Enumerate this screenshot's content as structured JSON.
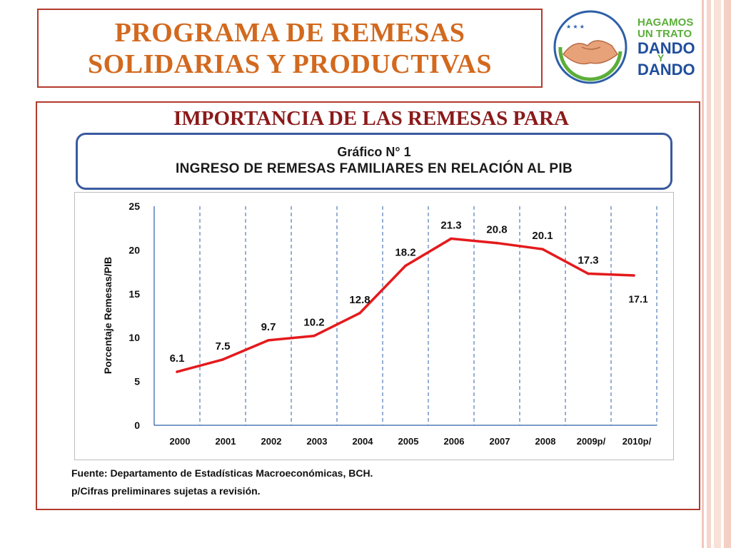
{
  "slide": {
    "title_line1": "PROGRAMA DE REMESAS",
    "title_line2": "SOLIDARIAS Y PRODUCTIVAS",
    "subtitle": "IMPORTANCIA DE LAS REMESAS PARA"
  },
  "logo": {
    "line1": "HAGAMOS",
    "line2": "UN TRATO",
    "line3": "DANDO",
    "connector": "Y",
    "line4": "DANDO"
  },
  "colors": {
    "title": "#d2691e",
    "subtitle": "#8b1a1a",
    "frame": "#b33a2e",
    "series": "#e41a1c",
    "header_border": "#3a5aa0"
  },
  "chart_data": {
    "type": "line",
    "title": "Gráfico N° 1",
    "subtitle": "INGRESO DE REMESAS FAMILIARES EN RELACIÓN AL PIB",
    "xlabel": "",
    "ylabel": "Porcentaje Remesas/PIB",
    "categories": [
      "2000",
      "2001",
      "2002",
      "2003",
      "2004",
      "2005",
      "2006",
      "2007",
      "2008",
      "2009p/",
      "2010p/"
    ],
    "values": [
      6.1,
      7.5,
      9.7,
      10.2,
      12.8,
      18.2,
      21.3,
      20.8,
      20.1,
      17.3,
      17.1
    ],
    "data_labels": [
      "6.1",
      "7.5",
      "9.7",
      "10.2",
      "12.8",
      "18.2",
      "21.3",
      "20.8",
      "20.1",
      "17.3",
      "17.1"
    ],
    "ylim": [
      0,
      25
    ],
    "yticks": [
      0,
      5,
      10,
      15,
      20,
      25
    ],
    "grid": "vertical dashed",
    "legend": "none"
  },
  "footnotes": {
    "source": "Fuente: Departamento de Estadísticas Macroeconómicas, BCH.",
    "note": "p/Cifras preliminares sujetas a revisión."
  }
}
